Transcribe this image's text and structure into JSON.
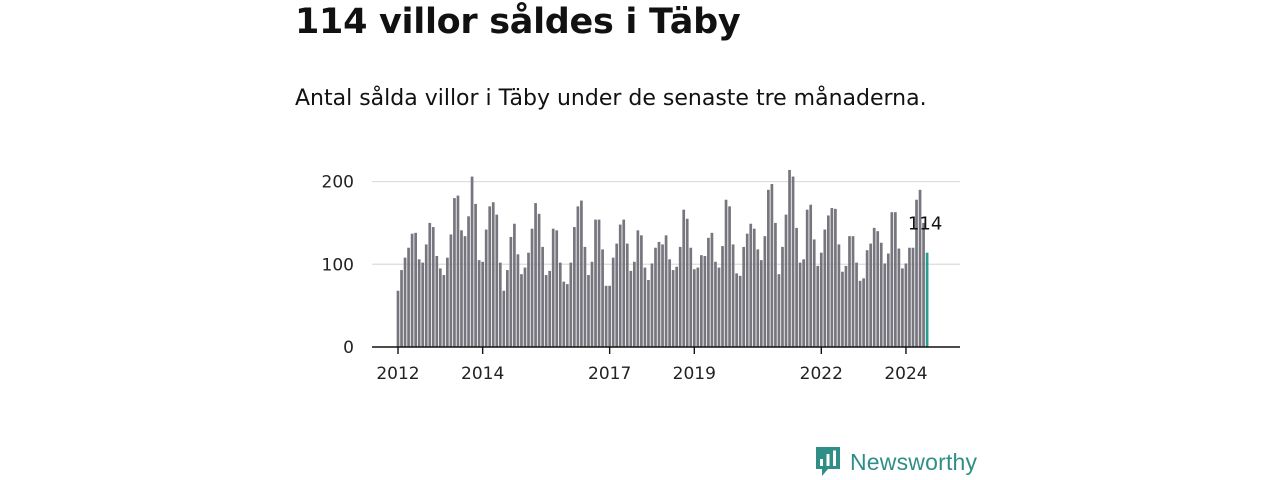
{
  "title": "114 villor såldes i Täby",
  "subtitle": "Antal sålda villor i Täby under de senaste tre månaderna.",
  "brand": {
    "name": "Newsworthy",
    "icon": "newsworthy-logo-icon",
    "color": "#2f8f86"
  },
  "chart_data": {
    "type": "bar",
    "title": "114 villor såldes i Täby",
    "xlabel": "",
    "ylabel": "",
    "ylim": [
      0,
      220
    ],
    "yticks": [
      0,
      100,
      200
    ],
    "grid": true,
    "bar_color": "#77757d",
    "highlight_color": "#2a9d8f",
    "x_start": 2012.0,
    "x_step": 0.08333,
    "xticks": [
      {
        "value": 2012,
        "label": "2012"
      },
      {
        "value": 2014,
        "label": "2014"
      },
      {
        "value": 2017,
        "label": "2017"
      },
      {
        "value": 2019,
        "label": "2019"
      },
      {
        "value": 2022,
        "label": "2022"
      },
      {
        "value": 2024,
        "label": "2024"
      }
    ],
    "values": [
      68,
      93,
      108,
      120,
      137,
      138,
      106,
      102,
      124,
      150,
      145,
      110,
      95,
      87,
      108,
      136,
      180,
      183,
      141,
      134,
      158,
      206,
      173,
      105,
      103,
      142,
      170,
      175,
      160,
      102,
      68,
      93,
      133,
      149,
      112,
      88,
      96,
      114,
      143,
      174,
      161,
      121,
      87,
      92,
      143,
      141,
      102,
      79,
      76,
      102,
      145,
      170,
      177,
      121,
      87,
      103,
      154,
      154,
      118,
      74,
      74,
      108,
      125,
      148,
      154,
      125,
      92,
      103,
      141,
      135,
      96,
      81,
      101,
      120,
      127,
      124,
      135,
      106,
      93,
      97,
      121,
      166,
      155,
      120,
      94,
      96,
      111,
      110,
      132,
      138,
      103,
      96,
      122,
      178,
      170,
      124,
      89,
      86,
      121,
      137,
      149,
      143,
      118,
      105,
      134,
      190,
      197,
      150,
      88,
      121,
      160,
      214,
      206,
      144,
      102,
      106,
      166,
      172,
      130,
      98,
      114,
      142,
      159,
      168,
      167,
      124,
      91,
      98,
      134,
      134,
      102,
      80,
      83,
      117,
      125,
      144,
      140,
      126,
      101,
      113,
      163,
      163,
      119,
      95,
      101,
      120,
      120,
      178,
      190,
      150,
      114
    ],
    "highlight_index": 150,
    "annotation": {
      "text": "114",
      "index": 150
    }
  }
}
